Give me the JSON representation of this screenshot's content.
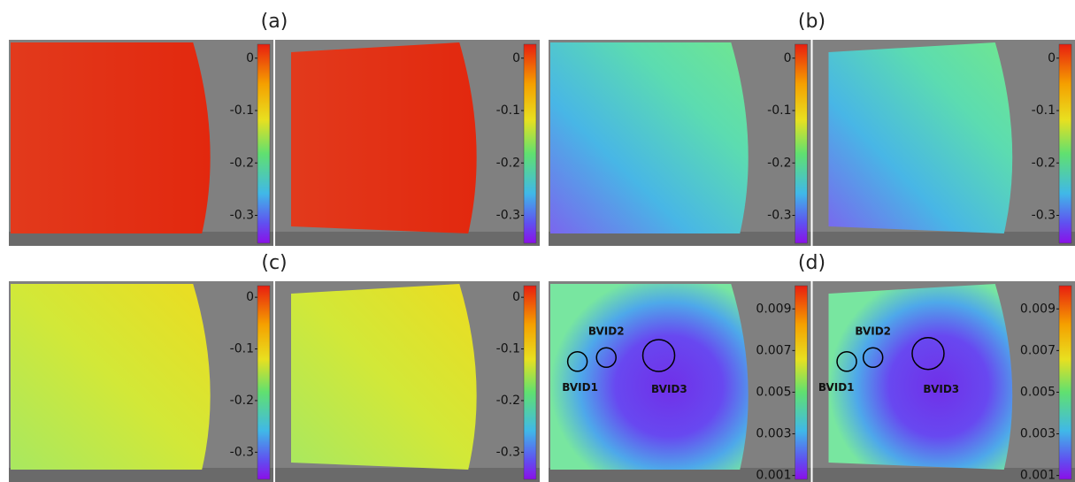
{
  "panels": [
    {
      "label": "(a)",
      "views": [
        {
          "ticks": [
            "0",
            "-0.1",
            "-0.2",
            "-0.3"
          ]
        },
        {
          "ticks": [
            "0",
            "-0.1",
            "-0.2",
            "-0.3"
          ]
        }
      ]
    },
    {
      "label": "(b)",
      "views": [
        {
          "ticks": [
            "0",
            "-0.1",
            "-0.2",
            "-0.3"
          ]
        },
        {
          "ticks": [
            "0",
            "-0.1",
            "-0.2",
            "-0.3"
          ]
        }
      ]
    },
    {
      "label": "(c)",
      "views": [
        {
          "ticks": [
            "0",
            "-0.1",
            "-0.2",
            "-0.3"
          ]
        },
        {
          "ticks": [
            "0",
            "-0.1",
            "-0.2",
            "-0.3"
          ]
        }
      ]
    },
    {
      "label": "(d)",
      "views": [
        {
          "ticks": [
            "0.009",
            "0.007",
            "0.005",
            "0.003",
            "0.001"
          ],
          "annotations": [
            "BVID1",
            "BVID2",
            "BVID3"
          ]
        },
        {
          "ticks": [
            "0.009",
            "0.007",
            "0.005",
            "0.003",
            "0.001"
          ],
          "annotations": [
            "BVID1",
            "BVID2",
            "BVID3"
          ]
        }
      ]
    }
  ]
}
